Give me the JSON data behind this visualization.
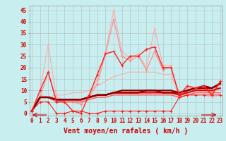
{
  "xlabel": "Vent moyen/en rafales ( km/h )",
  "background_color": "#c8eef0",
  "grid_color": "#b0b0b0",
  "text_color": "#cc0000",
  "xlabel_fontsize": 7,
  "yticks": [
    0,
    5,
    10,
    15,
    20,
    25,
    30,
    35,
    40,
    45
  ],
  "xticks": [
    0,
    1,
    2,
    3,
    4,
    5,
    6,
    7,
    8,
    9,
    10,
    11,
    12,
    13,
    14,
    15,
    16,
    17,
    18,
    19,
    20,
    21,
    22,
    23
  ],
  "ylim": [
    -1,
    47
  ],
  "xlim": [
    -0.3,
    23.3
  ],
  "line_light_pink_x": [
    0,
    1,
    2,
    3,
    4,
    5,
    6,
    7,
    8,
    9,
    10,
    11,
    12,
    13,
    14,
    15,
    16,
    17,
    18,
    19,
    20,
    21,
    22,
    23
  ],
  "line_light_pink_y": [
    1,
    10,
    30,
    7,
    6,
    6,
    5,
    8,
    15,
    27,
    45,
    27,
    24,
    26,
    20,
    37,
    21,
    21,
    7,
    11,
    11,
    12,
    9,
    14
  ],
  "line_light_pink_color": "#ffaaaa",
  "line_light_pink_marker": "+",
  "line_light_pink_lw": 0.8,
  "line_med_pink_x": [
    0,
    1,
    2,
    3,
    4,
    5,
    6,
    7,
    8,
    9,
    10,
    11,
    12,
    13,
    14,
    15,
    16,
    17,
    18,
    19,
    20,
    21,
    22,
    23
  ],
  "line_med_pink_y": [
    1,
    7,
    18,
    6,
    5,
    5,
    4,
    7,
    13,
    26,
    41,
    25,
    23,
    25,
    19,
    27,
    19,
    20,
    7,
    10,
    10,
    11,
    8,
    13
  ],
  "line_med_pink_color": "#ff8888",
  "line_med_pink_marker": "+",
  "line_med_pink_lw": 0.8,
  "line_bright_red_x": [
    0,
    1,
    2,
    3,
    4,
    5,
    6,
    7,
    8,
    9,
    10,
    11,
    12,
    13,
    14,
    15,
    16,
    17,
    18,
    19,
    20,
    21,
    22,
    23
  ],
  "line_bright_red_y": [
    1,
    10,
    18,
    5,
    5,
    1,
    0,
    8,
    17,
    26,
    27,
    21,
    25,
    25,
    28,
    29,
    20,
    20,
    8,
    12,
    11,
    12,
    8,
    14
  ],
  "line_bright_red_color": "#ff2222",
  "line_bright_red_marker": "+",
  "line_bright_red_lw": 1.0,
  "line_diagonal_pink_x": [
    0,
    1,
    2,
    3,
    4,
    5,
    6,
    7,
    8,
    9,
    10,
    11,
    12,
    13,
    14,
    15,
    16,
    17,
    18,
    19,
    20,
    21,
    22,
    23
  ],
  "line_diagonal_pink_y": [
    1,
    8,
    7,
    8,
    8,
    9,
    9,
    10,
    12,
    14,
    16,
    17,
    18,
    18,
    18,
    18,
    17,
    17,
    7,
    8,
    8,
    8,
    7,
    8
  ],
  "line_diagonal_pink_color": "#ffaaaa",
  "line_diagonal_pink_marker": null,
  "line_diagonal_pink_lw": 0.8,
  "line_flat1_x": [
    0,
    1,
    2,
    3,
    4,
    5,
    6,
    7,
    8,
    9,
    10,
    11,
    12,
    13,
    14,
    15,
    16,
    17,
    18,
    19,
    20,
    21,
    22,
    23
  ],
  "line_flat1_y": [
    1,
    7,
    7,
    5,
    5,
    5,
    5,
    6,
    7,
    7,
    8,
    8,
    8,
    8,
    8,
    8,
    8,
    8,
    7,
    8,
    9,
    9,
    9,
    9
  ],
  "line_flat1_color": "#ff6666",
  "line_flat1_marker": null,
  "line_flat1_lw": 1.2,
  "line_flat2_x": [
    0,
    1,
    2,
    3,
    4,
    5,
    6,
    7,
    8,
    9,
    10,
    11,
    12,
    13,
    14,
    15,
    16,
    17,
    18,
    19,
    20,
    21,
    22,
    23
  ],
  "line_flat2_y": [
    1,
    7,
    7,
    6,
    6,
    6,
    6,
    7,
    8,
    8,
    9,
    9,
    9,
    9,
    9,
    9,
    9,
    9,
    8,
    9,
    10,
    10,
    10,
    11
  ],
  "line_flat2_color": "#dd0000",
  "line_flat2_marker": null,
  "line_flat2_lw": 1.5,
  "line_flat3_x": [
    0,
    1,
    2,
    3,
    4,
    5,
    6,
    7,
    8,
    9,
    10,
    11,
    12,
    13,
    14,
    15,
    16,
    17,
    18,
    19,
    20,
    21,
    22,
    23
  ],
  "line_flat3_y": [
    1,
    7,
    7,
    6,
    6,
    6,
    6,
    7,
    8,
    8,
    9,
    9,
    9,
    9,
    10,
    10,
    9,
    9,
    9,
    10,
    11,
    11,
    11,
    13
  ],
  "line_flat3_color": "#aa0000",
  "line_flat3_marker": null,
  "line_flat3_lw": 1.8,
  "line_flat4_x": [
    0,
    1,
    2,
    3,
    4,
    5,
    6,
    7,
    8,
    9,
    10,
    11,
    12,
    13,
    14,
    15,
    16,
    17,
    18,
    19,
    20,
    21,
    22,
    23
  ],
  "line_flat4_y": [
    1,
    7,
    7,
    6,
    6,
    6,
    6,
    7,
    8,
    8,
    9,
    10,
    10,
    10,
    10,
    10,
    10,
    10,
    9,
    10,
    11,
    12,
    11,
    13
  ],
  "line_flat4_color": "#880000",
  "line_flat4_marker": null,
  "line_flat4_lw": 1.5,
  "line_bottom_x": [
    0,
    1,
    2,
    3,
    4,
    5,
    6,
    7,
    8,
    9,
    10,
    11,
    12,
    13,
    14,
    15,
    16,
    17,
    18,
    19,
    20,
    21,
    22,
    23
  ],
  "line_bottom_y": [
    1,
    5,
    5,
    0,
    0,
    1,
    1,
    0,
    0,
    1,
    1,
    1,
    1,
    1,
    1,
    1,
    1,
    1,
    7,
    8,
    8,
    8,
    8,
    8
  ],
  "line_bottom_color": "#ff2222",
  "line_bottom_marker": "+",
  "line_bottom_lw": 0.8,
  "tick_fontsize": 5.5
}
